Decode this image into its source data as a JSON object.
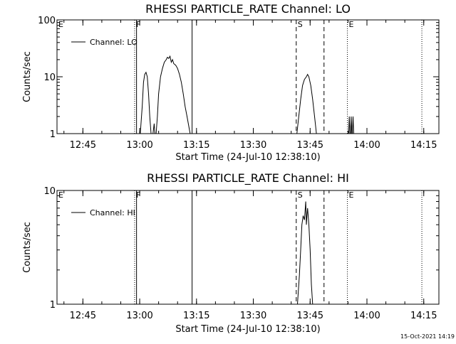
{
  "chart_data": [
    {
      "type": "line",
      "title": "RHESSI PARTICLE_RATE Channel: LO",
      "xlabel": "Start Time (24-Jul-10 12:38:10)",
      "ylabel": "Counts/sec",
      "y_scale": "log",
      "ylim": [
        1,
        100
      ],
      "y_ticks": [
        "1",
        "10",
        "100"
      ],
      "xlim": [
        "12:38:10",
        "14:19:00"
      ],
      "x_ticks": [
        "12:45",
        "13:00",
        "13:15",
        "13:30",
        "13:45",
        "14:00",
        "14:15"
      ],
      "legend": "Channel: LO",
      "legend_position": "top-left",
      "markers": [
        {
          "label": "E",
          "time": "12:38:10",
          "style": "dotted"
        },
        {
          "label": "F",
          "time": "12:58:40",
          "style": "dotted"
        },
        {
          "label": "F",
          "time": "12:59:10",
          "style": "solid"
        },
        {
          "time": "13:13:50",
          "style": "solid"
        },
        {
          "label": "S",
          "time": "13:41:20",
          "style": "dashed"
        },
        {
          "time": "13:48:40",
          "style": "dashed"
        },
        {
          "label": "E",
          "time": "13:54:50",
          "style": "dotted"
        },
        {
          "time": "14:14:30",
          "style": "dotted"
        }
      ],
      "series": [
        {
          "name": "Channel: LO",
          "segments": [
            [
              [
                "13:00:10",
                1
              ],
              [
                "13:00:40",
                3
              ],
              [
                "13:01:00",
                8
              ],
              [
                "13:01:20",
                11
              ],
              [
                "13:01:40",
                12
              ],
              [
                "13:02:00",
                10
              ],
              [
                "13:02:20",
                5
              ],
              [
                "13:02:40",
                2
              ],
              [
                "13:03:00",
                1
              ]
            ],
            [
              [
                "13:03:30",
                1
              ],
              [
                "13:03:50",
                1.5
              ],
              [
                "13:04:00",
                1
              ]
            ],
            [
              [
                "13:04:20",
                1
              ],
              [
                "13:04:40",
                2
              ],
              [
                "13:05:00",
                5
              ],
              [
                "13:05:30",
                10
              ],
              [
                "13:06:00",
                14
              ],
              [
                "13:06:30",
                18
              ],
              [
                "13:07:00",
                20
              ],
              [
                "13:07:20",
                22
              ],
              [
                "13:07:40",
                21
              ],
              [
                "13:08:00",
                23
              ],
              [
                "13:08:20",
                18
              ],
              [
                "13:08:40",
                20
              ],
              [
                "13:09:00",
                17
              ],
              [
                "13:09:30",
                16
              ],
              [
                "13:10:00",
                14
              ],
              [
                "13:10:30",
                11
              ],
              [
                "13:11:00",
                8
              ],
              [
                "13:11:30",
                5
              ],
              [
                "13:12:00",
                3
              ],
              [
                "13:12:30",
                2
              ],
              [
                "13:13:00",
                1.3
              ],
              [
                "13:13:20",
                1
              ]
            ],
            [
              [
                "13:41:30",
                1
              ],
              [
                "13:42:00",
                2
              ],
              [
                "13:42:30",
                4
              ],
              [
                "13:43:00",
                7
              ],
              [
                "13:43:30",
                9
              ],
              [
                "13:44:00",
                10
              ],
              [
                "13:44:20",
                11
              ],
              [
                "13:44:40",
                10
              ],
              [
                "13:45:10",
                7
              ],
              [
                "13:45:40",
                4
              ],
              [
                "13:46:10",
                2
              ],
              [
                "13:46:40",
                1
              ]
            ],
            [
              [
                "13:55:10",
                1
              ],
              [
                "13:55:20",
                2
              ],
              [
                "13:55:30",
                1
              ]
            ],
            [
              [
                "13:55:40",
                1
              ],
              [
                "13:55:50",
                2
              ],
              [
                "13:56:00",
                1
              ]
            ],
            [
              [
                "13:56:10",
                1
              ],
              [
                "13:56:20",
                2
              ],
              [
                "13:56:30",
                1
              ]
            ]
          ]
        }
      ]
    },
    {
      "type": "line",
      "title": "RHESSI PARTICLE_RATE Channel: HI",
      "xlabel": "Start Time (24-Jul-10 12:38:10)",
      "ylabel": "Counts/sec",
      "y_scale": "log",
      "ylim": [
        1,
        10
      ],
      "y_ticks": [
        "1",
        "10"
      ],
      "xlim": [
        "12:38:10",
        "14:19:00"
      ],
      "x_ticks": [
        "12:45",
        "13:00",
        "13:15",
        "13:30",
        "13:45",
        "14:00",
        "14:15"
      ],
      "legend": "Channel: HI",
      "legend_position": "top-left",
      "markers": [
        {
          "label": "E",
          "time": "12:38:10",
          "style": "dotted"
        },
        {
          "label": "F",
          "time": "12:58:40",
          "style": "dotted"
        },
        {
          "label": "F",
          "time": "12:59:10",
          "style": "solid"
        },
        {
          "time": "13:13:50",
          "style": "solid"
        },
        {
          "label": "S",
          "time": "13:41:20",
          "style": "dashed"
        },
        {
          "time": "13:48:40",
          "style": "dashed"
        },
        {
          "label": "E",
          "time": "13:54:50",
          "style": "dotted"
        },
        {
          "time": "14:14:30",
          "style": "dotted"
        }
      ],
      "series": [
        {
          "name": "Channel: HI",
          "segments": [
            [
              [
                "13:41:40",
                1
              ],
              [
                "13:42:10",
                1.8
              ],
              [
                "13:42:30",
                3
              ],
              [
                "13:42:50",
                5
              ],
              [
                "13:43:10",
                6
              ],
              [
                "13:43:30",
                5.5
              ],
              [
                "13:43:50",
                8
              ],
              [
                "13:44:00",
                5
              ],
              [
                "13:44:10",
                6
              ],
              [
                "13:44:20",
                7
              ],
              [
                "13:44:40",
                5
              ],
              [
                "13:45:00",
                3
              ],
              [
                "13:45:20",
                1.5
              ],
              [
                "13:45:40",
                1
              ]
            ]
          ]
        }
      ]
    }
  ],
  "footer": {
    "date": "15-Oct-2021 14:19"
  }
}
